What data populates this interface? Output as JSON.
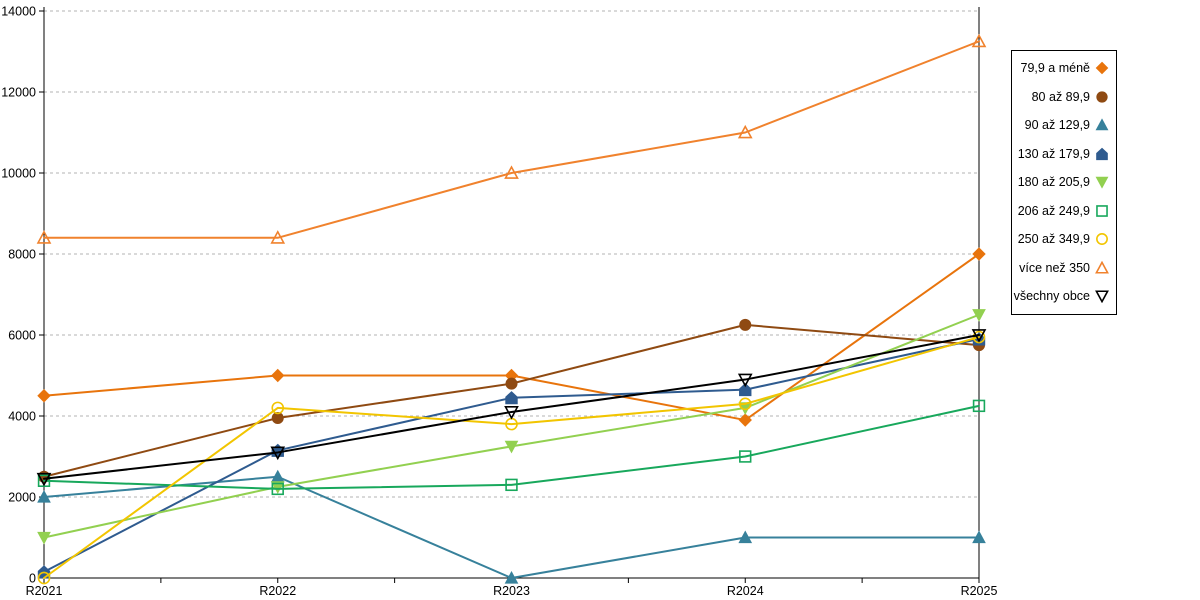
{
  "chart_data": {
    "type": "line",
    "title": "",
    "xlabel": "",
    "ylabel": "",
    "categories": [
      "R2021",
      "R2022",
      "R2023",
      "R2024",
      "R2025"
    ],
    "ylim": [
      0,
      14000
    ],
    "ytick_step": 2000,
    "y_tick_labels": [
      "0",
      "2000",
      "4000",
      "6000",
      "8000",
      "10000",
      "12000",
      "14000"
    ],
    "grid": "horizontal-dashed",
    "grid_color": "#b3b3b3",
    "axis_color": "#000000",
    "x_minor_ticks_between_labels": true,
    "legend_position": "right",
    "series": [
      {
        "name": "79,9 a méně",
        "color": "#e8740c",
        "marker": "diamond",
        "filled": true,
        "values": [
          4500,
          5000,
          5000,
          3900,
          8000
        ]
      },
      {
        "name": "80 až 89,9",
        "color": "#8f4a12",
        "marker": "circle",
        "filled": true,
        "values": [
          2500,
          3950,
          4800,
          6250,
          5750
        ]
      },
      {
        "name": "90 až 129,9",
        "color": "#37819b",
        "marker": "triangle-up",
        "filled": true,
        "values": [
          2000,
          2500,
          0,
          1000,
          1000
        ]
      },
      {
        "name": "130 až 179,9",
        "color": "#2f5b8f",
        "marker": "pentagon",
        "filled": true,
        "values": [
          150,
          3150,
          4450,
          4650,
          5900
        ]
      },
      {
        "name": "180 až 205,9",
        "color": "#92d050",
        "marker": "triangle-down",
        "filled": true,
        "values": [
          1000,
          2250,
          3250,
          4200,
          6500
        ]
      },
      {
        "name": "206 až 249,9",
        "color": "#18a85c",
        "marker": "square",
        "filled": false,
        "values": [
          2400,
          2200,
          2300,
          3000,
          4250
        ]
      },
      {
        "name": "250 až 349,9",
        "color": "#f2c500",
        "marker": "circle",
        "filled": false,
        "values": [
          0,
          4200,
          3800,
          4300,
          5950
        ]
      },
      {
        "name": "více než 350",
        "color": "#f0822d",
        "marker": "triangle-up",
        "filled": false,
        "values": [
          8400,
          8400,
          10000,
          11000,
          13250
        ]
      },
      {
        "name": "všechny obce",
        "color": "#000000",
        "marker": "triangle-down",
        "filled": false,
        "values": [
          2450,
          3100,
          4100,
          4900,
          6000
        ]
      }
    ]
  }
}
